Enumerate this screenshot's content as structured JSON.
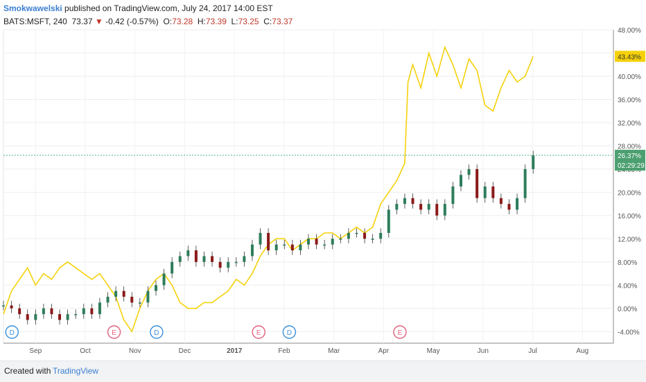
{
  "header": {
    "author": "Smokwawelski",
    "published": " published on TradingView.com, July 24, 2017 14:00 EST"
  },
  "quote": {
    "symbol": "BATS:MSFT, 240",
    "last": "73.37",
    "change": "-0.42 (-0.57%)",
    "o_label": "O:",
    "o": "73.28",
    "h_label": "H:",
    "h": "73.39",
    "l_label": "L:",
    "l": "73.25",
    "c_label": "C:",
    "c": "73.37"
  },
  "footer": {
    "created_with": "Created with",
    "brand": "TradingView"
  },
  "colors": {
    "candle_up": "#2e7d5b",
    "candle_down": "#8b1a1a",
    "compare_line": "#f5d10a",
    "last_line": "#4caf7d",
    "badge_dividend": "#3a8ed8",
    "badge_earnings": "#e0607e"
  },
  "chart_data": {
    "type": "line",
    "title": "",
    "y_unit": "%",
    "y_ticks": [
      "48.00%",
      "44.00%",
      "40.00%",
      "36.00%",
      "32.00%",
      "28.00%",
      "24.00%",
      "20.00%",
      "16.00%",
      "12.00%",
      "8.00%",
      "4.00%",
      "0.00%",
      "-4.00%"
    ],
    "ylim": [
      -6,
      48
    ],
    "x_ticks": [
      "Sep",
      "Oct",
      "Nov",
      "Dec",
      "2017",
      "Feb",
      "Mar",
      "Apr",
      "May",
      "Jun",
      "Jul",
      "Aug"
    ],
    "series": [
      {
        "name": "",
        "kind": "candles",
        "x": [
          0,
          5,
          10,
          15,
          20,
          25,
          30,
          35,
          40,
          45,
          50,
          55,
          60,
          65,
          70,
          75,
          80,
          85,
          90,
          95,
          100,
          105,
          110,
          115,
          120,
          125,
          130,
          135,
          140,
          145,
          150,
          155,
          160,
          165,
          170,
          175,
          180,
          185,
          190,
          195,
          200,
          205,
          210,
          215,
          220,
          225,
          230,
          235,
          240,
          245,
          250,
          255,
          260,
          265,
          270,
          275,
          280,
          285,
          290,
          295,
          300,
          305,
          310,
          315,
          320,
          325,
          330
        ],
        "values": [
          0.5,
          0,
          -1,
          -2,
          -1,
          0,
          -1,
          -2,
          -1,
          -1,
          0,
          -1,
          1,
          2,
          3,
          2,
          1,
          1,
          3,
          4,
          6,
          8,
          9,
          10,
          8,
          9,
          8,
          7,
          8,
          8,
          9,
          11,
          13,
          10,
          11,
          11,
          10,
          11,
          12,
          11,
          11,
          12,
          12,
          13,
          13,
          12,
          12,
          13,
          17,
          18,
          19,
          18,
          17,
          18,
          16,
          18,
          21,
          23,
          24,
          19,
          21,
          19,
          18,
          17,
          19,
          24,
          26.37
        ]
      },
      {
        "name": "",
        "kind": "line",
        "x": [
          0,
          5,
          10,
          15,
          20,
          25,
          30,
          35,
          40,
          45,
          50,
          55,
          60,
          65,
          70,
          75,
          80,
          85,
          90,
          95,
          100,
          105,
          110,
          115,
          120,
          125,
          130,
          135,
          140,
          145,
          150,
          155,
          160,
          165,
          170,
          175,
          180,
          185,
          190,
          195,
          200,
          205,
          210,
          215,
          220,
          225,
          230,
          235,
          240,
          245,
          250,
          252,
          255,
          260,
          265,
          270,
          275,
          280,
          285,
          290,
          295,
          300,
          305,
          310,
          315,
          320,
          325,
          330
        ],
        "values": [
          -1,
          3,
          5,
          7,
          4,
          6,
          5,
          7,
          8,
          7,
          6,
          5,
          6,
          4,
          2,
          -2,
          -4,
          0,
          3,
          5,
          6,
          4,
          1,
          0,
          0,
          1,
          1,
          2,
          3,
          5,
          4,
          6,
          9,
          11,
          12,
          12,
          10,
          11,
          12,
          12,
          13,
          13,
          12,
          13,
          14,
          13,
          14,
          18,
          20,
          22,
          25,
          39,
          42,
          38,
          44,
          40,
          45,
          42,
          38,
          43,
          41,
          35,
          34,
          38,
          41,
          39,
          40,
          43.43
        ]
      }
    ],
    "last_value_label": "26.37%",
    "compare_value_label": "43.43%",
    "countdown": "02:29:29",
    "event_badges": [
      {
        "label": "D",
        "x": 5
      },
      {
        "label": "E",
        "x": 65
      },
      {
        "label": "D",
        "x": 90
      },
      {
        "label": "E",
        "x": 150
      },
      {
        "label": "D",
        "x": 168
      },
      {
        "label": "E",
        "x": 233
      }
    ]
  }
}
